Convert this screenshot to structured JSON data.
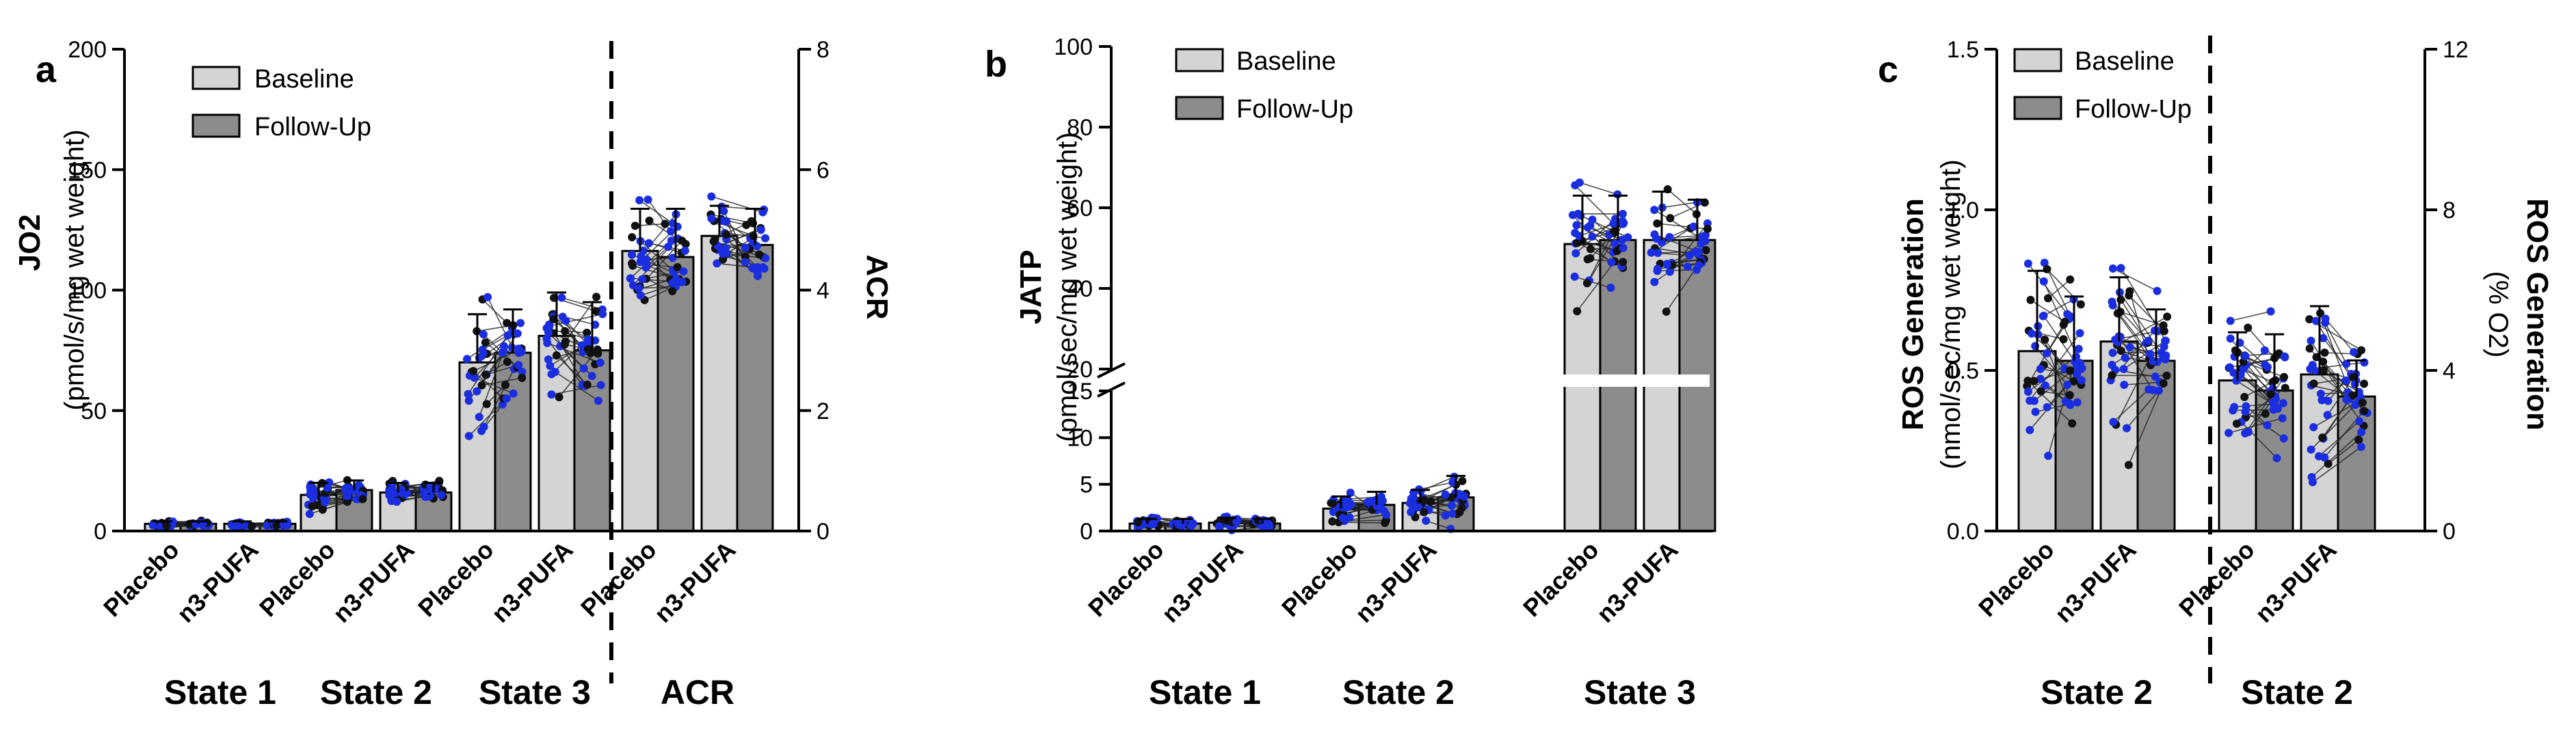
{
  "colors": {
    "baseline_bar": "#d4d4d4",
    "followup_bar": "#8c8c8c",
    "point_blue": "#1a2ee0",
    "point_black": "#111111",
    "line": "#000000"
  },
  "legend": {
    "baseline": "Baseline",
    "followup": "Follow-Up"
  },
  "chart_data": [
    {
      "panel": "a",
      "type": "bar",
      "subtype": "paired bar chart with individual points and connecting lines, dual y-axis",
      "ylabel_left_main": "JO2",
      "ylabel_left_sub": "(pmol/s/mg wet weight)",
      "ylabel_right": "ACR",
      "ylim_left": [
        0,
        200
      ],
      "yticks_left": [
        "0",
        "50",
        "100",
        "150",
        "200"
      ],
      "ylim_right": [
        0,
        8
      ],
      "yticks_right": [
        "0",
        "2",
        "4",
        "6",
        "8"
      ],
      "divider": "dashed line between State 3 and ACR",
      "groups": [
        {
          "label": "State 1",
          "axis": "left",
          "bars": [
            {
              "category": "Placebo",
              "baseline": 3,
              "baseline_sd": 1,
              "followup": 3,
              "followup_sd": 1
            },
            {
              "category": "n3-PUFA",
              "baseline": 3,
              "baseline_sd": 1,
              "followup": 3,
              "followup_sd": 1
            }
          ]
        },
        {
          "label": "State 2",
          "axis": "left",
          "bars": [
            {
              "category": "Placebo",
              "baseline": 15,
              "baseline_sd": 5,
              "followup": 17,
              "followup_sd": 4
            },
            {
              "category": "n3-PUFA",
              "baseline": 16,
              "baseline_sd": 4,
              "followup": 16,
              "followup_sd": 4
            }
          ]
        },
        {
          "label": "State 3",
          "axis": "left",
          "bars": [
            {
              "category": "Placebo",
              "baseline": 70,
              "baseline_sd": 20,
              "followup": 74,
              "followup_sd": 18
            },
            {
              "category": "n3-PUFA",
              "baseline": 81,
              "baseline_sd": 18,
              "followup": 75,
              "followup_sd": 20
            }
          ]
        },
        {
          "label": "ACR",
          "axis": "right",
          "bars": [
            {
              "category": "Placebo",
              "baseline": 4.65,
              "baseline_sd": 0.7,
              "followup": 4.55,
              "followup_sd": 0.8
            },
            {
              "category": "n3-PUFA",
              "baseline": 4.9,
              "baseline_sd": 0.5,
              "followup": 4.75,
              "followup_sd": 0.6
            }
          ]
        }
      ]
    },
    {
      "panel": "b",
      "type": "bar",
      "subtype": "paired bar chart with individual points, broken y-axis",
      "ylabel_main": "JATP",
      "ylabel_sub": "(pmol/sec/mg wet weight)",
      "axis_break": [
        15,
        20
      ],
      "yticks_lower": [
        "0",
        "5",
        "10",
        "15"
      ],
      "yticks_upper": [
        "20",
        "40",
        "60",
        "80",
        "100"
      ],
      "ylim": [
        0,
        100
      ],
      "groups": [
        {
          "label": "State 1",
          "bars": [
            {
              "category": "Placebo",
              "baseline": 0.8,
              "baseline_sd": 0.5,
              "followup": 0.8,
              "followup_sd": 0.5
            },
            {
              "category": "n3-PUFA",
              "baseline": 0.9,
              "baseline_sd": 0.5,
              "followup": 0.8,
              "followup_sd": 0.5
            }
          ]
        },
        {
          "label": "State 2",
          "bars": [
            {
              "category": "Placebo",
              "baseline": 2.4,
              "baseline_sd": 1.3,
              "followup": 2.8,
              "followup_sd": 1.4
            },
            {
              "category": "n3-PUFA",
              "baseline": 3.0,
              "baseline_sd": 1.4,
              "followup": 3.6,
              "followup_sd": 2.3
            }
          ]
        },
        {
          "label": "State 3",
          "bars": [
            {
              "category": "Placebo",
              "baseline": 51,
              "baseline_sd": 12,
              "followup": 52,
              "followup_sd": 11
            },
            {
              "category": "n3-PUFA",
              "baseline": 52,
              "baseline_sd": 12,
              "followup": 52,
              "followup_sd": 10
            }
          ]
        }
      ]
    },
    {
      "panel": "c",
      "type": "bar",
      "subtype": "paired bar chart with individual points and connecting lines, dual y-axis",
      "ylabel_left_main": "ROS Generation",
      "ylabel_left_sub": "(nmol/sec/mg wet weight)",
      "ylabel_right_main": "ROS Generation",
      "ylabel_right_sub": "(% O2)",
      "ylim_left": [
        0,
        1.5
      ],
      "yticks_left": [
        "0.0",
        "0.5",
        "1.0",
        "1.5"
      ],
      "ylim_right": [
        0,
        12
      ],
      "yticks_right": [
        "0",
        "4",
        "8",
        "12"
      ],
      "divider": "dashed line between the two State 2 groups",
      "groups": [
        {
          "label": "State 2",
          "axis": "left",
          "bars": [
            {
              "category": "Placebo",
              "baseline": 0.56,
              "baseline_sd": 0.25,
              "followup": 0.53,
              "followup_sd": 0.2
            },
            {
              "category": "n3-PUFA",
              "baseline": 0.59,
              "baseline_sd": 0.2,
              "followup": 0.53,
              "followup_sd": 0.16
            }
          ]
        },
        {
          "label": "State 2",
          "axis": "right",
          "bars": [
            {
              "category": "Placebo",
              "baseline": 3.75,
              "baseline_sd": 1.2,
              "followup": 3.5,
              "followup_sd": 1.4
            },
            {
              "category": "n3-PUFA",
              "baseline": 3.9,
              "baseline_sd": 1.7,
              "followup": 3.35,
              "followup_sd": 0.9
            }
          ]
        }
      ]
    }
  ]
}
